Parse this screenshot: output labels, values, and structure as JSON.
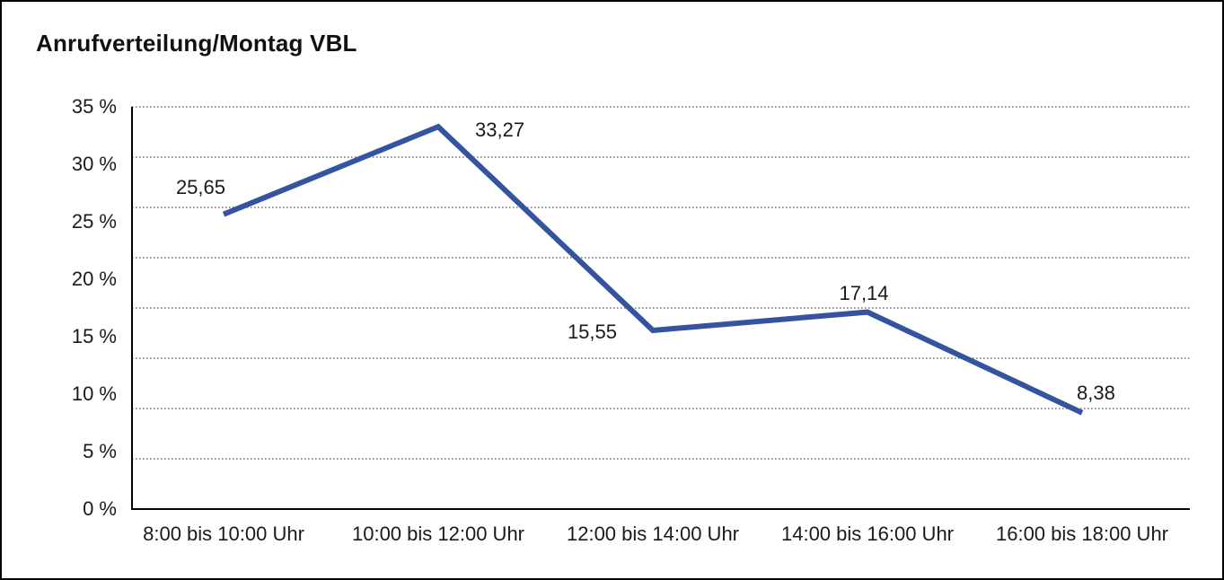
{
  "chart_data": {
    "type": "line",
    "title": "Anrufverteilung/Montag VBL",
    "categories": [
      "8:00 bis 10:00 Uhr",
      "10:00 bis 12:00 Uhr",
      "12:00 bis 14:00 Uhr",
      "14:00 bis 16:00 Uhr",
      "16:00 bis 18:00 Uhr"
    ],
    "values": [
      25.65,
      33.27,
      15.55,
      17.14,
      8.38
    ],
    "value_labels": [
      "25,65",
      "33,27",
      "15,55",
      "17,14",
      "8,38"
    ],
    "xlabel": "",
    "ylabel": "",
    "ylim": [
      0,
      35
    ],
    "ytick_step": 5,
    "ytick_labels": [
      "35 %",
      "30 %",
      "25 %",
      "20 %",
      "15 %",
      "10 %",
      "5 %",
      "0 %"
    ],
    "grid": "horizontal-dotted",
    "grid_divisions": 8,
    "legend": "none",
    "line_color": "#3454A0",
    "grid_color": "#555555",
    "axis_color": "#000000",
    "text_color": "#1a1a1a",
    "background": "#ffffff"
  }
}
